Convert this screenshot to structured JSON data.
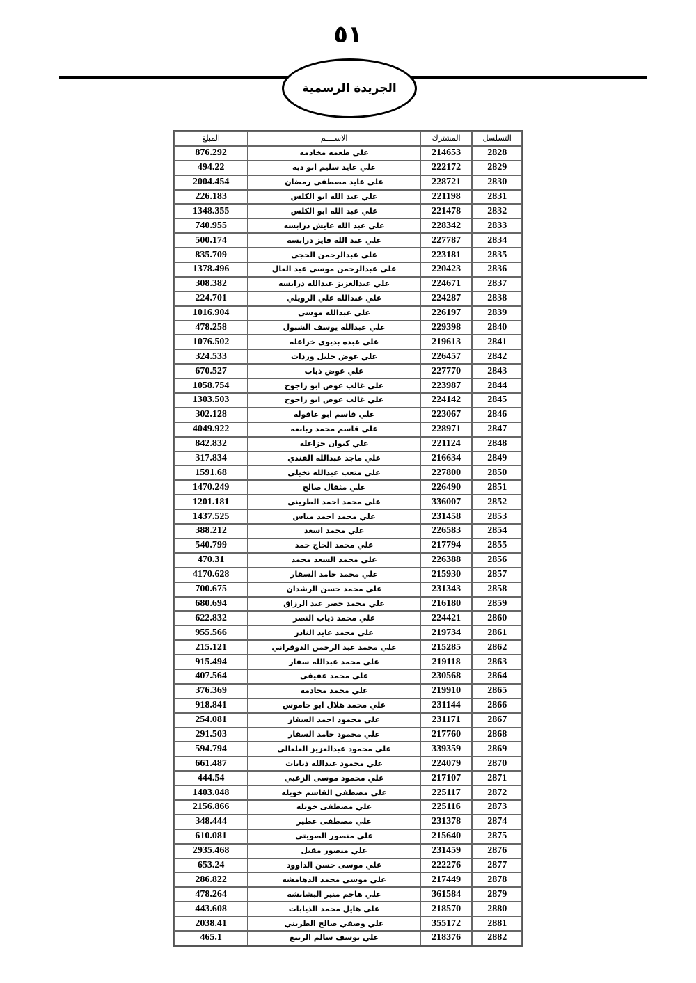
{
  "page_number": "٥١",
  "gazette_title": "الجريدة الرسمية",
  "table": {
    "headers": {
      "serial": "التسلسل",
      "subscriber": "المشترك",
      "name": "الاســــم",
      "amount": "المبلغ"
    },
    "rows": [
      [
        "2828",
        "214653",
        "علي طعمه مخادمه",
        "876.292"
      ],
      [
        "2829",
        "222172",
        "علي عايد سليم ابو ديه",
        "494.22"
      ],
      [
        "2830",
        "228721",
        "علي عايد مصطفى رمضان",
        "2004.454"
      ],
      [
        "2831",
        "221198",
        "علي عبد الله  ابو الكلس",
        "226.183"
      ],
      [
        "2832",
        "221478",
        "علي عبد الله  ابو الكلس",
        "1348.355"
      ],
      [
        "2833",
        "228342",
        "علي عبد الله عايش درابسه",
        "740.955"
      ],
      [
        "2834",
        "227787",
        "علي عبد الله فايز درابسه",
        "500.174"
      ],
      [
        "2835",
        "223181",
        "علي عبدالرحمن الحجي",
        "835.709"
      ],
      [
        "2836",
        "220423",
        "علي عبدالرحمن موسى عبد العال",
        "1378.496"
      ],
      [
        "2837",
        "224671",
        "علي عبدالعزيز عبدالله درابسه",
        "308.382"
      ],
      [
        "2838",
        "224287",
        "علي عبدالله علي الرويلي",
        "224.701"
      ],
      [
        "2839",
        "226197",
        "علي عبدالله موسى",
        "1016.904"
      ],
      [
        "2840",
        "229398",
        "علي عبدالله يوسف الشبول",
        "478.258"
      ],
      [
        "2841",
        "219613",
        "علي عبده بديوي خزاعله",
        "1076.502"
      ],
      [
        "2842",
        "226457",
        "علي عوض خليل وردات",
        "324.533"
      ],
      [
        "2843",
        "227770",
        "علي عوض ذياب",
        "670.527"
      ],
      [
        "2844",
        "223987",
        "علي غالب عوض ابو راجوح",
        "1058.754"
      ],
      [
        "2845",
        "224142",
        "علي غالب عوض ابو راجوح",
        "1303.503"
      ],
      [
        "2846",
        "223067",
        "علي قاسم ابو عاقوله",
        "302.128"
      ],
      [
        "2847",
        "228971",
        "علي قاسم محمد ربابعه",
        "4049.922"
      ],
      [
        "2848",
        "221124",
        "علي كيوان خزاعله",
        "842.832"
      ],
      [
        "2849",
        "216634",
        "علي ماجد عبدالله الفندي",
        "317.834"
      ],
      [
        "2850",
        "227800",
        "علي متعب عبدالله نخيلي",
        "1591.68"
      ],
      [
        "2851",
        "226490",
        "علي مثقال صالح",
        "1470.249"
      ],
      [
        "2852",
        "336007",
        "علي محمد احمد الطريني",
        "1201.181"
      ],
      [
        "2853",
        "231458",
        "علي محمد احمد مياس",
        "1437.525"
      ],
      [
        "2854",
        "226583",
        "علي محمد اسعد",
        "388.212"
      ],
      [
        "2855",
        "217794",
        "علي محمد الحاج حمد",
        "540.799"
      ],
      [
        "2856",
        "226388",
        "علي محمد السعد محمد",
        "470.31"
      ],
      [
        "2857",
        "215930",
        "علي محمد حامد السقار",
        "4170.628"
      ],
      [
        "2858",
        "231343",
        "علي محمد حسن الرشدان",
        "700.675"
      ],
      [
        "2859",
        "216180",
        "علي محمد خضر عبد الرزاق",
        "680.694"
      ],
      [
        "2860",
        "224421",
        "علي محمد ذياب النصر",
        "622.832"
      ],
      [
        "2861",
        "219734",
        "علي محمد عايد النادر",
        "955.566"
      ],
      [
        "2862",
        "215285",
        "علي محمد عبد الرحمن الدوقراني",
        "215.121"
      ],
      [
        "2863",
        "219118",
        "علي محمد عبدالله سقار",
        "915.494"
      ],
      [
        "2864",
        "230568",
        "علي محمد عفيفي",
        "407.564"
      ],
      [
        "2865",
        "219910",
        "علي محمد مخادمه",
        "376.369"
      ],
      [
        "2866",
        "231144",
        "علي محمد هلال ابو جاموس",
        "918.841"
      ],
      [
        "2867",
        "231171",
        "علي محمود احمد السقار",
        "254.081"
      ],
      [
        "2868",
        "217760",
        "علي محمود حامد السقار",
        "291.503"
      ],
      [
        "2869",
        "339359",
        "علي محمود عبدالعزيز العلعالي",
        "594.794"
      ],
      [
        "2870",
        "224079",
        "علي محمود عبدالله ذيابات",
        "661.487"
      ],
      [
        "2871",
        "217107",
        "علي محمود موسى الزعبي",
        "444.54"
      ],
      [
        "2872",
        "225117",
        "علي مصطفى القاسم خويله",
        "1403.048"
      ],
      [
        "2873",
        "225116",
        "علي مصطفى خويله",
        "2156.866"
      ],
      [
        "2874",
        "231378",
        "علي مصطفى عطير",
        "348.444"
      ],
      [
        "2875",
        "215640",
        "علي منصور  الصويتي",
        "610.081"
      ],
      [
        "2876",
        "231459",
        "علي منصور مقبل",
        "2935.468"
      ],
      [
        "2877",
        "222276",
        "علي موسى حسن الداوود",
        "653.24"
      ],
      [
        "2878",
        "217449",
        "علي موسى محمد الدهامشه",
        "286.822"
      ],
      [
        "2879",
        "361584",
        "علي هاجم منير البشابشه",
        "478.264"
      ],
      [
        "2880",
        "218570",
        "علي هايل محمد الذيابات",
        "443.608"
      ],
      [
        "2881",
        "355172",
        "علي وصفي صالح الطريني",
        "2038.41"
      ],
      [
        "2882",
        "218376",
        "علي يوسف سالم الربيع",
        "465.1"
      ]
    ]
  }
}
